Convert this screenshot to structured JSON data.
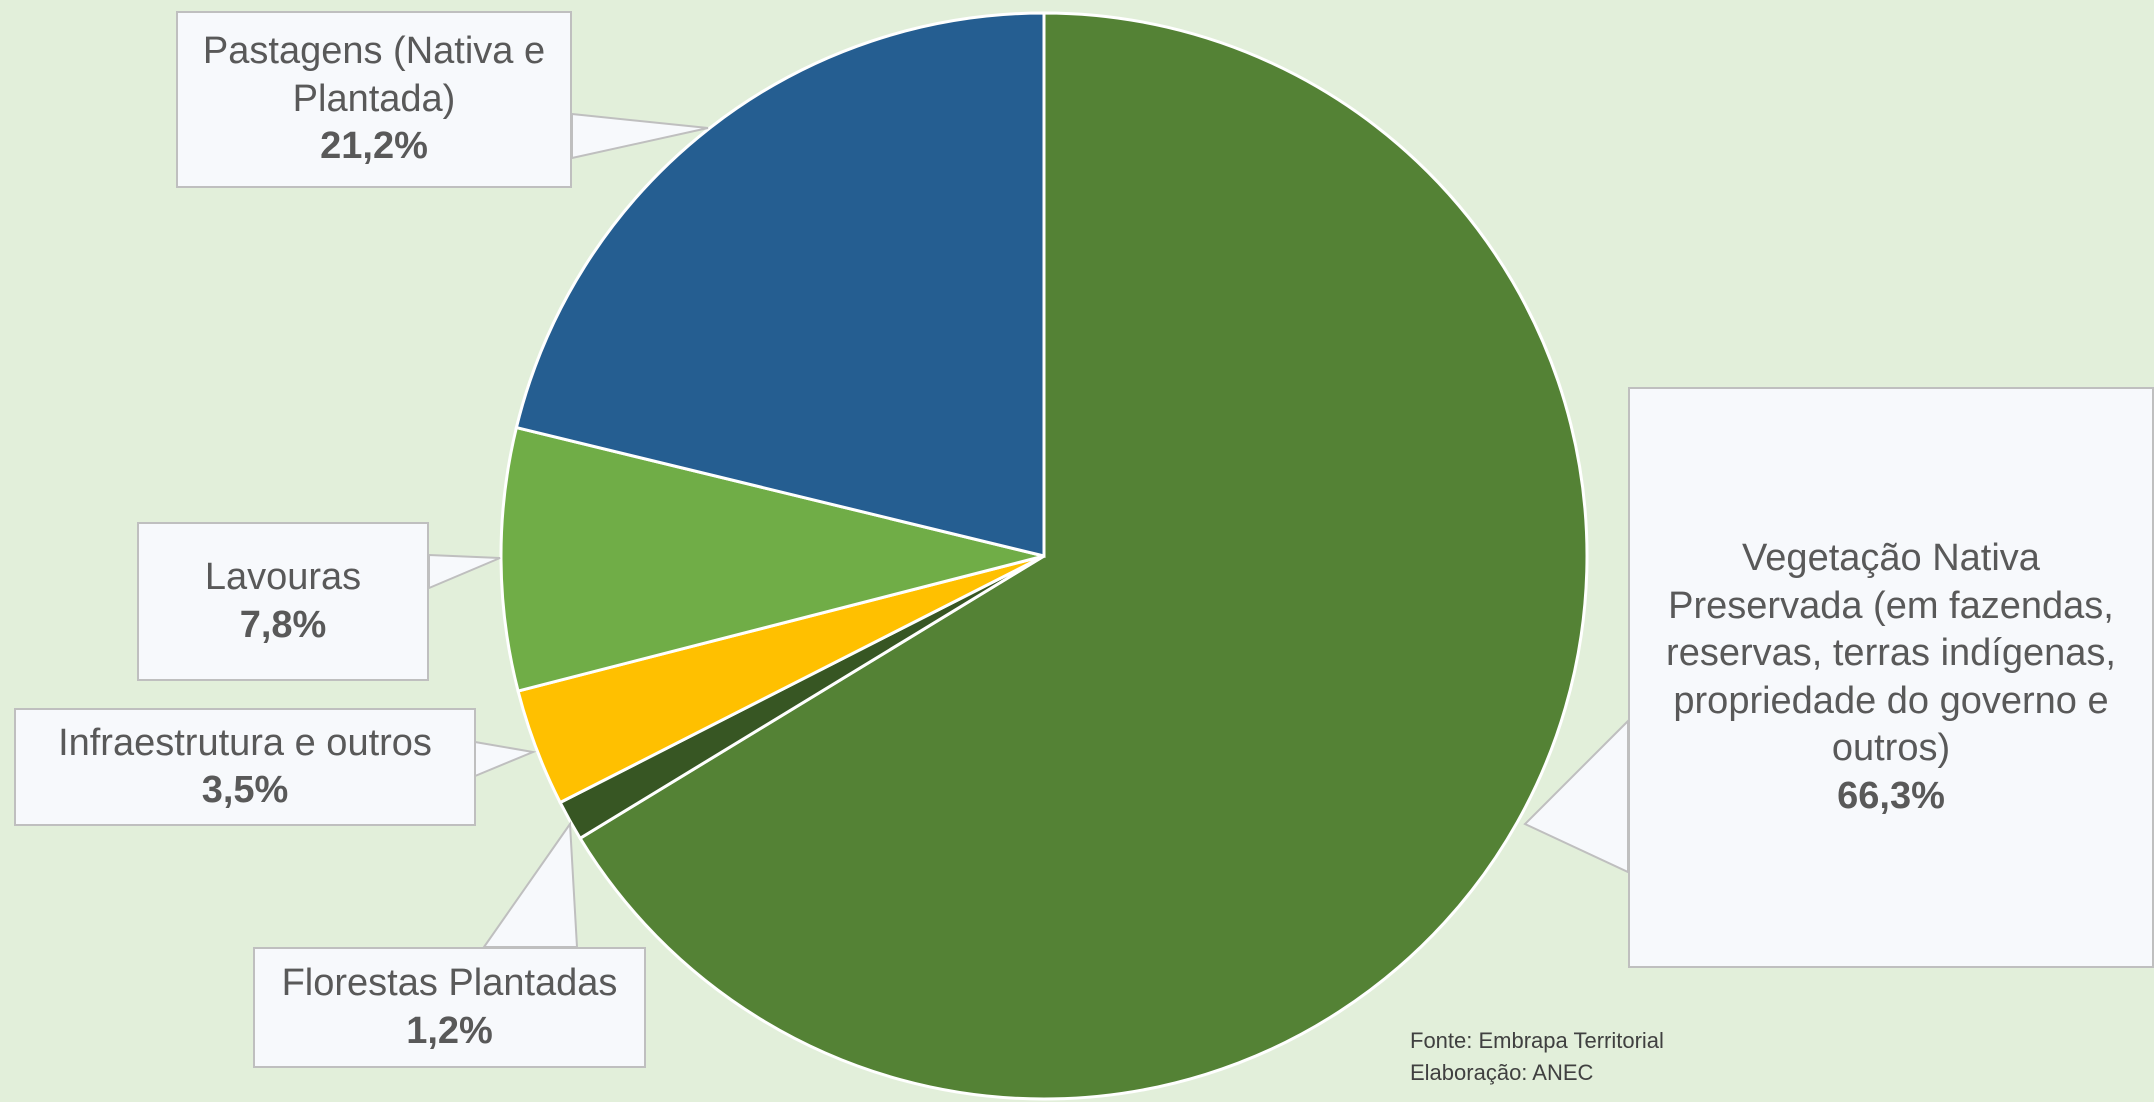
{
  "chart_data": {
    "type": "pie",
    "categories": [
      "Vegetação Nativa Preservada (em fazendas, reservas, terras indígenas, propriedade do governo e outros)",
      "Florestas Plantadas",
      "Infraestrutura e outros",
      "Lavouras",
      "Pastagens (Nativa e Plantada)"
    ],
    "values": [
      66.3,
      1.2,
      3.5,
      7.8,
      21.2
    ],
    "value_labels": [
      "66,3%",
      "1,2%",
      "3,5%",
      "7,8%",
      "21,2%"
    ],
    "colors": [
      "#548235",
      "#375623",
      "#ffc000",
      "#70ad47",
      "#255e91"
    ],
    "notes": [
      "Fonte: Embrapa Territorial",
      "Elaboração: ANEC"
    ]
  }
}
